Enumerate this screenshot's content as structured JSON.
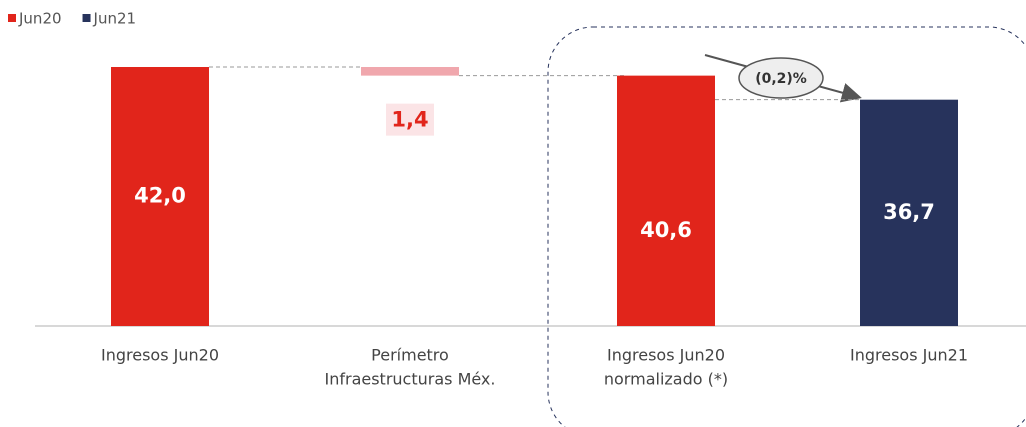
{
  "chart_data": {
    "type": "waterfall",
    "categories": [
      [
        "Ingresos Jun20"
      ],
      [
        "Perímetro",
        "Infraestructuras Méx."
      ],
      [
        "Ingresos Jun20",
        "normalizado (*)"
      ],
      [
        "Ingresos Jun21"
      ]
    ],
    "values": [
      42.0,
      -1.4,
      40.6,
      36.7
    ],
    "value_labels": [
      "42,0",
      "1,4",
      "40,6",
      "36,7"
    ],
    "colors": [
      "#e1251b",
      "#f0a7ad",
      "#e1251b",
      "#27335c"
    ],
    "legend": [
      {
        "name": "Jun20",
        "color": "#e1251b"
      },
      {
        "name": "Jun21",
        "color": "#27335c"
      }
    ],
    "annotation": "(0,2)%"
  }
}
